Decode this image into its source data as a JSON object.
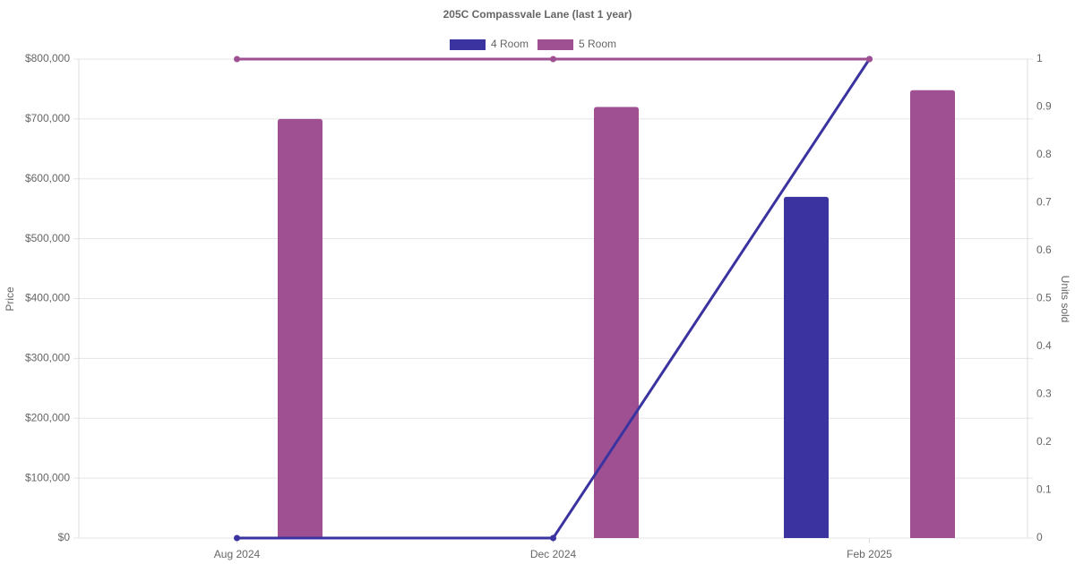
{
  "chart_data": {
    "type": "bar",
    "title": "205C Compassvale Lane (last 1 year)",
    "ylabel": "Price",
    "y2label": "Units sold",
    "categories": [
      "Aug 2024",
      "Dec 2024",
      "Feb 2025"
    ],
    "series": [
      {
        "name": "4 Room",
        "color": "#3a33a0",
        "values": [
          null,
          null,
          570000
        ]
      },
      {
        "name": "5 Room",
        "color": "#9e5093",
        "values": [
          700000,
          720000,
          748000
        ]
      },
      {
        "type": "line",
        "axis": "y2",
        "color": "#3a33a0",
        "values": [
          0,
          0,
          1
        ]
      },
      {
        "type": "line",
        "axis": "y2",
        "color": "#9e5093",
        "values": [
          1,
          1,
          1
        ]
      }
    ],
    "ylim": [
      0,
      800000
    ],
    "yticks": [
      {
        "value": 0,
        "label": "$0"
      },
      {
        "value": 100000,
        "label": "$100,000"
      },
      {
        "value": 200000,
        "label": "$200,000"
      },
      {
        "value": 300000,
        "label": "$300,000"
      },
      {
        "value": 400000,
        "label": "$400,000"
      },
      {
        "value": 500000,
        "label": "$500,000"
      },
      {
        "value": 600000,
        "label": "$600,000"
      },
      {
        "value": 700000,
        "label": "$700,000"
      },
      {
        "value": 800000,
        "label": "$800,000"
      }
    ],
    "y2lim": [
      0,
      1
    ],
    "y2ticks": [
      0,
      0.1,
      0.2,
      0.3,
      0.4,
      0.5,
      0.6,
      0.7,
      0.8,
      0.9,
      1
    ],
    "grid": true,
    "legend": "top"
  }
}
